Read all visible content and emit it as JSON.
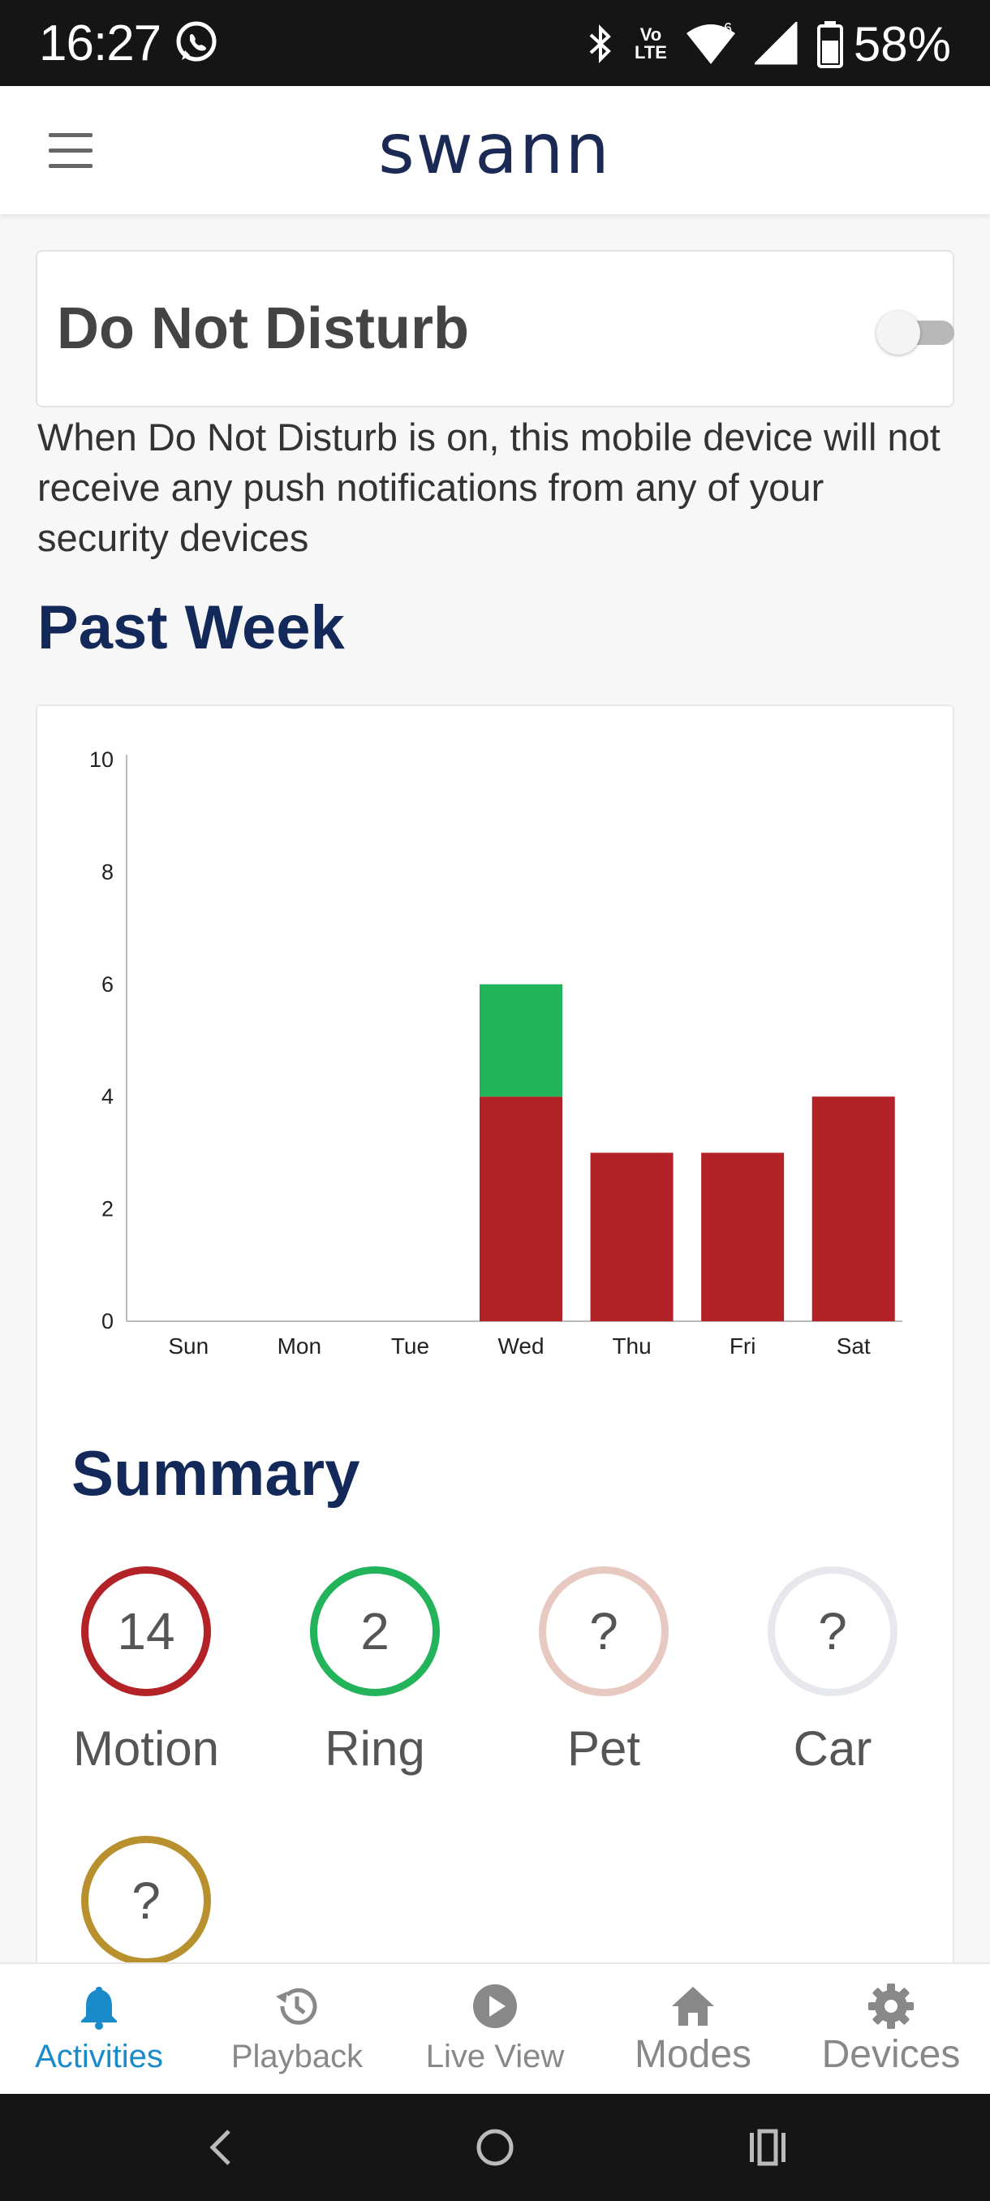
{
  "status_bar": {
    "time": "16:27",
    "volte_top": "Vo",
    "volte_bottom": "LTE",
    "network_badge": "6",
    "battery": "58%",
    "icons": [
      "whatsapp-icon",
      "bluetooth-icon",
      "volte-icon",
      "wifi-icon",
      "signal-icon",
      "battery-icon"
    ]
  },
  "header": {
    "brand": "swann",
    "menu_icon": "hamburger-menu-icon"
  },
  "dnd": {
    "title": "Do Not Disturb",
    "enabled": false,
    "description": "When Do Not Disturb is on, this mobile device will not receive any push notifications from any of your security devices"
  },
  "past_week": {
    "title": "Past Week"
  },
  "chart_data": {
    "type": "bar",
    "stacked": true,
    "categories": [
      "Sun",
      "Mon",
      "Tue",
      "Wed",
      "Thu",
      "Fri",
      "Sat"
    ],
    "series": [
      {
        "values": [
          0,
          0,
          0,
          4,
          3,
          3,
          4
        ],
        "color": "#b32226"
      },
      {
        "values": [
          0,
          0,
          0,
          2,
          0,
          0,
          0
        ],
        "color": "#23b35a"
      }
    ],
    "ylim": [
      0,
      10
    ],
    "yticks": [
      0,
      2,
      4,
      6,
      8,
      10
    ],
    "title": "",
    "xlabel": "",
    "ylabel": "",
    "grid": false
  },
  "summary": {
    "title": "Summary",
    "items": [
      {
        "label": "Motion",
        "value": "14",
        "color": "#b32226"
      },
      {
        "label": "Ring",
        "value": "2",
        "color": "#23b35a"
      },
      {
        "label": "Pet",
        "value": "?",
        "color": "#e8c9c1"
      },
      {
        "label": "Car",
        "value": "?",
        "color": "#e6e8ee"
      },
      {
        "label": "",
        "value": "?",
        "color": "#b8902e"
      }
    ]
  },
  "bottom_nav": {
    "items": [
      {
        "label": "Activities",
        "icon": "bell-icon",
        "active": true
      },
      {
        "label": "Playback",
        "icon": "history-icon",
        "active": false
      },
      {
        "label": "Live View",
        "icon": "play-circle-icon",
        "active": false
      },
      {
        "label": "Modes",
        "icon": "home-icon",
        "active": false
      },
      {
        "label": "Devices",
        "icon": "gear-icon",
        "active": false
      }
    ]
  },
  "colors": {
    "accent": "#1a8bc9",
    "heading": "#13295a",
    "motion": "#b32226",
    "ring": "#23b35a"
  }
}
